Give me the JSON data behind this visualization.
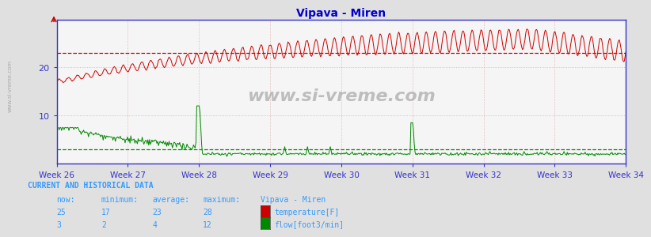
{
  "title": "Vipava - Miren",
  "bg_color": "#e0e0e0",
  "plot_bg_color": "#f5f5f5",
  "grid_color": "#cccccc",
  "axis_color": "#3333cc",
  "title_color": "#0000cc",
  "weeks": [
    "Week 26",
    "Week 27",
    "Week 28",
    "Week 29",
    "Week 30",
    "Week 31",
    "Week 32",
    "Week 33",
    "Week 34"
  ],
  "week_positions": [
    0,
    84,
    168,
    252,
    336,
    420,
    504,
    588,
    672
  ],
  "n_points": 700,
  "temp_color": "#cc0000",
  "flow_color": "#008800",
  "temp_hline": 23.0,
  "flow_hline": 3.0,
  "ymin": 0,
  "ymax": 30,
  "yticks": [
    10,
    20
  ],
  "watermark": "www.si-vreme.com",
  "sidebar_text": "www.si-vreme.com",
  "table_title": "CURRENT AND HISTORICAL DATA",
  "col_headers": [
    "now:",
    "minimum:",
    "average:",
    "maximum:",
    "Vipava - Miren"
  ],
  "temp_row": [
    "25",
    "17",
    "23",
    "28",
    "temperature[F]"
  ],
  "flow_row": [
    "3",
    "2",
    "4",
    "12",
    "flow[foot3/min]"
  ],
  "table_color": "#3399ff"
}
